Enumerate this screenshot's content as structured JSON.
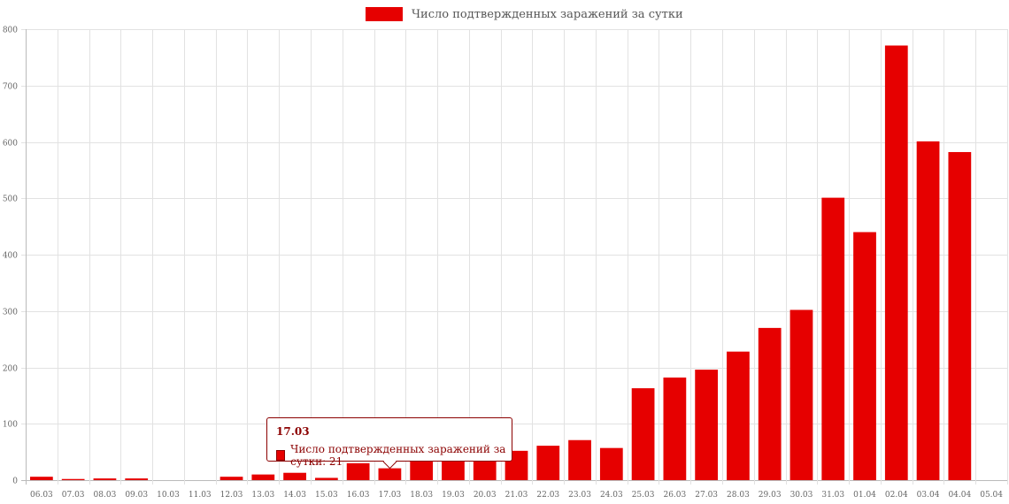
{
  "legend": {
    "label": "Число подтвержденных заражений за сутки",
    "color": "#e60000"
  },
  "tooltip": {
    "title": "17.03",
    "series_label": "Число подтвержденных заражений за сутки",
    "value": "21",
    "text": "Число подтвержденных заражений за сутки: 21"
  },
  "chart_data": {
    "type": "bar",
    "grid": true,
    "legend_position": "top",
    "ylim": [
      0,
      800
    ],
    "yticks": [
      0,
      100,
      200,
      300,
      400,
      500,
      600,
      700,
      800
    ],
    "categories": [
      "06.03",
      "07.03",
      "08.03",
      "09.03",
      "10.03",
      "11.03",
      "12.03",
      "13.03",
      "14.03",
      "15.03",
      "16.03",
      "17.03",
      "18.03",
      "19.03",
      "20.03",
      "21.03",
      "22.03",
      "23.03",
      "24.03",
      "25.03",
      "26.03",
      "27.03",
      "28.03",
      "29.03",
      "30.03",
      "31.03",
      "01.04",
      "02.04",
      "03.04",
      "04.04",
      "05.04"
    ],
    "series": [
      {
        "name": "Число подтвержденных заражений за сутки",
        "color": "#e60000",
        "values": [
          6,
          2,
          3,
          3,
          0,
          0,
          6,
          10,
          13,
          4,
          30,
          21,
          36,
          34,
          36,
          52,
          61,
          71,
          57,
          163,
          182,
          196,
          228,
          270,
          302,
          501,
          440,
          771,
          601,
          582,
          null
        ]
      }
    ]
  }
}
